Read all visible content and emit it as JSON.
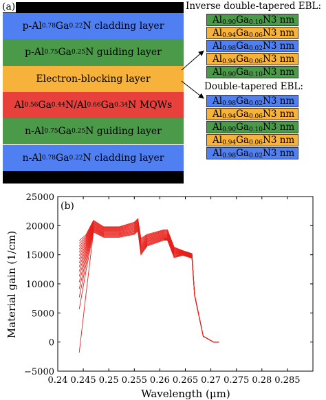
{
  "panel_a": {
    "label": "(a)",
    "layers": [
      {
        "text": "p-Al<sub>0.78</sub>Ga<sub>0.22</sub>N cladding layer",
        "color": "#4f7ff0"
      },
      {
        "text": "p-Al<sub>0.75</sub>Ga<sub>0.25</sub>N guiding layer",
        "color": "#4a9a4a"
      },
      {
        "text": "Electron-blocking layer",
        "color": "#f7b23b"
      },
      {
        "text": "Al<sub>0.56</sub>Ga<sub>0.44</sub>N/Al<sub>0.66</sub>Ga<sub>0.34</sub>N MQWs",
        "color": "#e8413c"
      },
      {
        "text": "n-Al<sub>0.75</sub>Ga<sub>0.25</sub>N guiding layer",
        "color": "#4a9a4a"
      },
      {
        "text": "n-Al<sub>0.78</sub>Ga<sub>0.22</sub>N cladding layer",
        "color": "#4f7ff0"
      }
    ],
    "inverse_title": "Inverse double-tapered EBL:",
    "inverse_ebl": [
      {
        "text": "Al<sub>0.90</sub>Ga<sub>0.10</sub>N",
        "thickness": "3 nm",
        "color": "#4a9a4a"
      },
      {
        "text": "Al<sub>0.94</sub>Ga<sub>0.06</sub>N",
        "thickness": "3 nm",
        "color": "#f7b23b"
      },
      {
        "text": "Al<sub>0.98</sub>Ga<sub>0.02</sub>N",
        "thickness": "3 nm",
        "color": "#4f7ff0"
      },
      {
        "text": "Al<sub>0.94</sub>Ga<sub>0.06</sub>N",
        "thickness": "3 nm",
        "color": "#f7b23b"
      },
      {
        "text": "Al<sub>0.90</sub>Ga<sub>0.10</sub>N",
        "thickness": "3 nm",
        "color": "#4a9a4a"
      }
    ],
    "double_title": "Double-tapered EBL:",
    "double_ebl": [
      {
        "text": "Al<sub>0.98</sub>Ga<sub>0.02</sub>N",
        "thickness": "3 nm",
        "color": "#4f7ff0"
      },
      {
        "text": "Al<sub>0.94</sub>Ga<sub>0.06</sub>N",
        "thickness": "3 nm",
        "color": "#f7b23b"
      },
      {
        "text": "Al<sub>0.90</sub>Ga<sub>0.10</sub>N",
        "thickness": "3 nm",
        "color": "#4a9a4a"
      },
      {
        "text": "Al<sub>0.94</sub>Ga<sub>0.06</sub>N",
        "thickness": "3 nm",
        "color": "#f7b23b"
      },
      {
        "text": "Al<sub>0.98</sub>Ga<sub>0.02</sub>N",
        "thickness": "3 nm",
        "color": "#4f7ff0"
      }
    ]
  },
  "chart_data": {
    "type": "line",
    "panel_label": "(b)",
    "xlabel": "Wavelength (μm)",
    "ylabel": "Material gain (1/cm)",
    "xlim": [
      0.24,
      0.29
    ],
    "ylim": [
      -5000,
      25000
    ],
    "xticks": [
      "0.24",
      "0.245",
      "0.25",
      "0.255",
      "0.26",
      "0.265",
      "0.27",
      "0.275",
      "0.28",
      "0.285"
    ],
    "yticks": [
      "−5000",
      "0",
      "5000",
      "10000",
      "15000",
      "20000",
      "25000"
    ],
    "line_color": "#e8201a",
    "series_count": 16,
    "x": [
      0.2442,
      0.2455,
      0.247,
      0.249,
      0.252,
      0.255,
      0.2557,
      0.2563,
      0.2575,
      0.2608,
      0.2615,
      0.2628,
      0.2645,
      0.2663,
      0.2668,
      0.2685,
      0.2705,
      0.271,
      0.2716,
      0.2725,
      0.273,
      0.276,
      0.28,
      0.285
    ],
    "series_start": [
      -1800,
      17400
    ],
    "series_mid": [
      8000,
      18400
    ],
    "series_peak1": [
      18900,
      20900
    ],
    "series_peak1_dip": [
      18000,
      19800
    ],
    "series_rise": [
      18500,
      20600
    ],
    "series_peak2": [
      19100,
      21200
    ],
    "series_drop": [
      15000,
      17800
    ],
    "series_step": [
      16500,
      18500
    ],
    "series_peak3": [
      17500,
      19300
    ],
    "series_dip3": [
      14500,
      16300
    ],
    "series_shoulder": [
      14900,
      15700
    ],
    "series_shoulder_end": [
      14400,
      15200
    ],
    "series_fall": [
      8000,
      8200
    ],
    "tail": [
      1000,
      0,
      0,
      0
    ]
  }
}
